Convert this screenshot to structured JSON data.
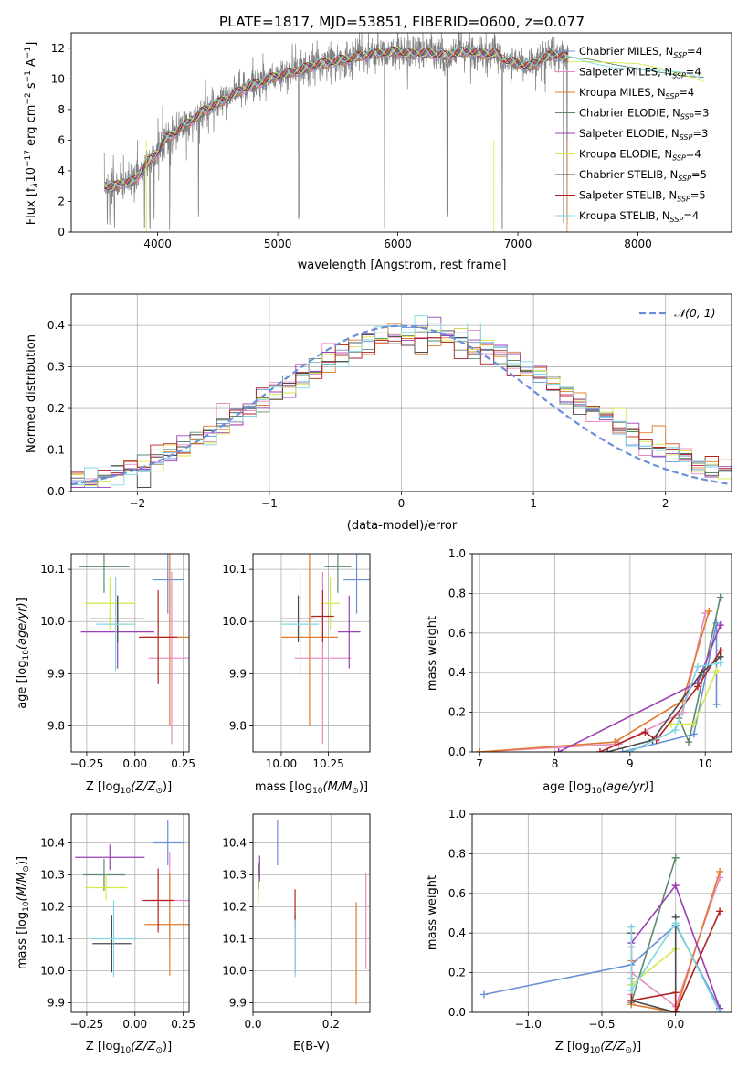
{
  "chart_data": [
    {
      "id": "spectrum",
      "type": "line",
      "title": "PLATE=1817, MJD=53851, FIBERID=0600, z=0.077",
      "xlabel": "wavelength [Angstrom, rest frame]",
      "ylabel": "Flux [f",
      "ylabel_full": "Flux [fλ10⁻¹⁷ erg cm⁻² s⁻¹ A⁻¹]",
      "xlim": [
        3280,
        8780
      ],
      "ylim": [
        0,
        13
      ],
      "xticks": [
        4000,
        5000,
        6000,
        7000,
        8000
      ],
      "yticks": [
        0,
        2,
        4,
        6,
        8,
        10,
        12
      ],
      "grid": false,
      "legend_position": "right",
      "legend": [
        {
          "label": "Chabrier MILES, N",
          "sub": "SSP",
          "suffix": "=4",
          "color": "#6a8fd8"
        },
        {
          "label": "Salpeter MILES, N",
          "sub": "SSP",
          "suffix": "=4",
          "color": "#e88ac4"
        },
        {
          "label": "Kroupa MILES, N",
          "sub": "SSP",
          "suffix": "=4",
          "color": "#e07b2e"
        },
        {
          "label": "Chabrier ELODIE, N",
          "sub": "SSP",
          "suffix": "=3",
          "color": "#5d8a6a"
        },
        {
          "label": "Salpeter ELODIE, N",
          "sub": "SSP",
          "suffix": "=3",
          "color": "#9b3fb5"
        },
        {
          "label": "Kroupa ELODIE, N",
          "sub": "SSP",
          "suffix": "=4",
          "color": "#d6e84a"
        },
        {
          "label": "Chabrier STELIB, N",
          "sub": "SSP",
          "suffix": "=5",
          "color": "#4a4a4a"
        },
        {
          "label": "Salpeter STELIB, N",
          "sub": "SSP",
          "suffix": "=5",
          "color": "#b22222"
        },
        {
          "label": "Kroupa STELIB, N",
          "sub": "SSP",
          "suffix": "=4",
          "color": "#7fd6e0"
        }
      ],
      "continuum": [
        [
          3560,
          3.0
        ],
        [
          3620,
          2.9
        ],
        [
          3700,
          3.2
        ],
        [
          3800,
          3.3
        ],
        [
          3850,
          3.8
        ],
        [
          3900,
          4.4
        ],
        [
          3950,
          4.8
        ],
        [
          4000,
          5.2
        ],
        [
          4050,
          6.0
        ],
        [
          4100,
          6.2
        ],
        [
          4200,
          6.8
        ],
        [
          4300,
          7.4
        ],
        [
          4400,
          8.0
        ],
        [
          4500,
          8.4
        ],
        [
          4600,
          8.8
        ],
        [
          4700,
          9.3
        ],
        [
          4800,
          9.6
        ],
        [
          4900,
          9.9
        ],
        [
          5000,
          10.2
        ],
        [
          5100,
          10.4
        ],
        [
          5200,
          10.6
        ],
        [
          5300,
          10.9
        ],
        [
          5400,
          11.0
        ],
        [
          5500,
          11.2
        ],
        [
          5600,
          11.3
        ],
        [
          5700,
          11.5
        ],
        [
          5800,
          11.6
        ],
        [
          5900,
          11.7
        ],
        [
          6000,
          11.8
        ],
        [
          6100,
          11.6
        ],
        [
          6200,
          11.7
        ],
        [
          6300,
          11.6
        ],
        [
          6400,
          11.5
        ],
        [
          6500,
          11.7
        ],
        [
          6600,
          11.8
        ],
        [
          6700,
          11.6
        ],
        [
          6800,
          11.7
        ],
        [
          6900,
          11.2
        ],
        [
          7000,
          11.0
        ],
        [
          7100,
          10.8
        ],
        [
          7200,
          11.3
        ],
        [
          7300,
          11.6
        ],
        [
          7400,
          11.4
        ]
      ],
      "extension": [
        [
          7420,
          11.3
        ],
        [
          7600,
          11.1
        ],
        [
          7800,
          10.9
        ],
        [
          8000,
          10.8
        ],
        [
          8200,
          10.6
        ],
        [
          8400,
          10.3
        ],
        [
          8550,
          9.9
        ]
      ]
    },
    {
      "id": "residuals",
      "type": "histogram",
      "xlabel": "(data-model)/error",
      "ylabel": "Normed distribution",
      "xlim": [
        -2.5,
        2.5
      ],
      "ylim": [
        0,
        0.475
      ],
      "xticks": [
        -2,
        -1,
        0,
        1,
        2
      ],
      "yticks": [
        0.0,
        0.1,
        0.2,
        0.3,
        0.4
      ],
      "grid": true,
      "legend_position": "top-right",
      "legend": [
        {
          "label": "𝒩(0, 1)",
          "color": "#6a8fd8",
          "style": "dashed"
        }
      ],
      "bin_width": 0.1
    },
    {
      "id": "age_vs_Z",
      "type": "errorbar",
      "xlabel": "Z [log",
      "xlabel_full": "Z [log₁₀(Z/Z⊙)]",
      "ylabel": "age  [log",
      "ylabel_full": "age  [log₁₀(age/yr)]",
      "xlim": [
        -0.33,
        0.28
      ],
      "ylim": [
        9.75,
        10.13
      ],
      "xticks": [
        -0.25,
        0.0,
        0.25
      ],
      "xtick_labels": [
        "−0.25",
        "0.00",
        "0.25"
      ],
      "yticks": [
        9.8,
        9.9,
        10.0,
        10.1
      ],
      "grid": true,
      "points": [
        {
          "x": 0.17,
          "xerr": 0.08,
          "y": 10.08,
          "yerr": 0.065,
          "color": "#6a8fd8"
        },
        {
          "x": 0.19,
          "xerr": 0.12,
          "y": 9.93,
          "yerr": 0.165,
          "color": "#e88ac4"
        },
        {
          "x": 0.18,
          "xerr": 0.13,
          "y": 9.97,
          "yerr": 0.17,
          "color": "#e07b2e"
        },
        {
          "x": -0.16,
          "xerr": 0.13,
          "y": 10.105,
          "yerr": 0.05,
          "color": "#5d8a6a"
        },
        {
          "x": -0.09,
          "xerr": 0.19,
          "y": 9.98,
          "yerr": 0.07,
          "color": "#9b3fb5"
        },
        {
          "x": -0.13,
          "xerr": 0.13,
          "y": 10.035,
          "yerr": 0.05,
          "color": "#d6e84a"
        },
        {
          "x": -0.09,
          "xerr": 0.14,
          "y": 10.005,
          "yerr": 0.045,
          "color": "#4a4a4a"
        },
        {
          "x": 0.12,
          "xerr": 0.1,
          "y": 9.97,
          "yerr": 0.09,
          "color": "#b22222"
        },
        {
          "x": -0.1,
          "xerr": 0.1,
          "y": 9.995,
          "yerr": 0.09,
          "color": "#7fd6e0"
        }
      ]
    },
    {
      "id": "age_vs_mass",
      "type": "errorbar",
      "xlabel": "mass [log",
      "xlabel_full": "mass [log₁₀(M/M⊙)]",
      "xlim": [
        9.85,
        10.47
      ],
      "ylim": [
        9.75,
        10.13
      ],
      "xticks": [
        10.0,
        10.25
      ],
      "xtick_labels": [
        "10.00",
        "10.25"
      ],
      "yticks": [
        9.8,
        9.9,
        10.0,
        10.1
      ],
      "grid": true,
      "points": [
        {
          "x": 10.4,
          "xerr": 0.07,
          "y": 10.08,
          "yerr": 0.065,
          "color": "#6a8fd8"
        },
        {
          "x": 10.22,
          "xerr": 0.15,
          "y": 9.93,
          "yerr": 0.165,
          "color": "#e88ac4"
        },
        {
          "x": 10.15,
          "xerr": 0.15,
          "y": 9.97,
          "yerr": 0.17,
          "color": "#e07b2e"
        },
        {
          "x": 10.3,
          "xerr": 0.07,
          "y": 10.105,
          "yerr": 0.05,
          "color": "#5d8a6a"
        },
        {
          "x": 10.36,
          "xerr": 0.06,
          "y": 9.98,
          "yerr": 0.07,
          "color": "#9b3fb5"
        },
        {
          "x": 10.26,
          "xerr": 0.05,
          "y": 10.035,
          "yerr": 0.05,
          "color": "#d6e84a"
        },
        {
          "x": 10.09,
          "xerr": 0.09,
          "y": 10.005,
          "yerr": 0.045,
          "color": "#4a4a4a"
        },
        {
          "x": 10.22,
          "xerr": 0.06,
          "y": 10.01,
          "yerr": 0.05,
          "color": "#b22222"
        },
        {
          "x": 10.1,
          "xerr": 0.1,
          "y": 9.995,
          "yerr": 0.1,
          "color": "#7fd6e0"
        }
      ]
    },
    {
      "id": "mw_vs_age",
      "type": "line",
      "xlabel": "age  [log",
      "xlabel_full": "age  [log₁₀(age/yr)]",
      "ylabel": "mass weight",
      "xlim": [
        6.9,
        10.35
      ],
      "ylim": [
        0,
        1.0
      ],
      "xticks": [
        7,
        8,
        9,
        10
      ],
      "yticks": [
        0.0,
        0.2,
        0.4,
        0.6,
        0.8,
        1.0
      ],
      "grid": true,
      "series": [
        {
          "color": "#6a8fd8",
          "points": [
            [
              8.9,
              0.0
            ],
            [
              9.85,
              0.09
            ],
            [
              10.15,
              0.65
            ],
            [
              10.15,
              0.24
            ]
          ]
        },
        {
          "color": "#e88ac4",
          "points": [
            [
              7.0,
              0.0
            ],
            [
              8.85,
              0.04
            ],
            [
              9.7,
              0.2
            ],
            [
              10.0,
              0.7
            ]
          ]
        },
        {
          "color": "#e07b2e",
          "points": [
            [
              7.0,
              0.0
            ],
            [
              8.8,
              0.05
            ],
            [
              9.7,
              0.26
            ],
            [
              10.05,
              0.71
            ]
          ]
        },
        {
          "color": "#5d8a6a",
          "points": [
            [
              9.65,
              0.17
            ],
            [
              9.78,
              0.05
            ],
            [
              10.2,
              0.78
            ]
          ]
        },
        {
          "color": "#9b3fb5",
          "points": [
            [
              8.05,
              0.0
            ],
            [
              9.9,
              0.35
            ],
            [
              10.2,
              0.64
            ]
          ]
        },
        {
          "color": "#d6e84a",
          "points": [
            [
              9.55,
              0.14
            ],
            [
              9.85,
              0.14
            ],
            [
              10.15,
              0.41
            ]
          ]
        },
        {
          "color": "#4a4a4a",
          "points": [
            [
              8.7,
              0.0
            ],
            [
              9.3,
              0.06
            ],
            [
              9.95,
              0.4
            ],
            [
              10.2,
              0.48
            ]
          ]
        },
        {
          "color": "#b22222",
          "points": [
            [
              8.6,
              0.0
            ],
            [
              9.2,
              0.1
            ],
            [
              9.35,
              0.06
            ],
            [
              9.9,
              0.33
            ],
            [
              10.2,
              0.51
            ]
          ]
        },
        {
          "color": "#7fd6e0",
          "points": [
            [
              9.0,
              0.0
            ],
            [
              9.6,
              0.11
            ],
            [
              9.9,
              0.43
            ],
            [
              10.2,
              0.45
            ]
          ]
        }
      ]
    },
    {
      "id": "mass_vs_Z",
      "type": "errorbar",
      "xlabel": "Z [log",
      "xlabel_full": "Z [log₁₀(Z/Z⊙)]",
      "ylabel": "mass [log",
      "ylabel_full": "mass [log₁₀(M/M⊙)]",
      "xlim": [
        -0.33,
        0.28
      ],
      "ylim": [
        9.87,
        10.49
      ],
      "xticks": [
        -0.25,
        0.0,
        0.25
      ],
      "xtick_labels": [
        "−0.25",
        "0.00",
        "0.25"
      ],
      "yticks": [
        9.9,
        10.0,
        10.1,
        10.2,
        10.3,
        10.4
      ],
      "ytick_labels": [
        "9.9",
        "10.0",
        "10.1",
        "10.2",
        "10.3",
        "10.4"
      ],
      "grid": true,
      "points": [
        {
          "x": 0.17,
          "xerr": 0.08,
          "y": 10.4,
          "yerr": 0.07,
          "color": "#6a8fd8"
        },
        {
          "x": 0.18,
          "xerr": 0.1,
          "y": 10.22,
          "yerr": 0.15,
          "color": "#e88ac4"
        },
        {
          "x": 0.18,
          "xerr": 0.13,
          "y": 10.145,
          "yerr": 0.16,
          "color": "#e07b2e"
        },
        {
          "x": -0.16,
          "xerr": 0.11,
          "y": 10.3,
          "yerr": 0.05,
          "color": "#5d8a6a"
        },
        {
          "x": -0.13,
          "xerr": 0.18,
          "y": 10.355,
          "yerr": 0.04,
          "color": "#9b3fb5"
        },
        {
          "x": -0.15,
          "xerr": 0.11,
          "y": 10.26,
          "yerr": 0.04,
          "color": "#d6e84a"
        },
        {
          "x": -0.12,
          "xerr": 0.1,
          "y": 10.085,
          "yerr": 0.09,
          "color": "#4a4a4a"
        },
        {
          "x": 0.12,
          "xerr": 0.08,
          "y": 10.22,
          "yerr": 0.1,
          "color": "#b22222"
        },
        {
          "x": -0.11,
          "xerr": 0.12,
          "y": 10.1,
          "yerr": 0.12,
          "color": "#7fd6e0"
        }
      ]
    },
    {
      "id": "mass_vs_ebv",
      "type": "errorbar",
      "xlabel": "E(B-V)",
      "xlim": [
        0.0,
        0.3
      ],
      "ylim": [
        9.87,
        10.49
      ],
      "xticks": [
        0.0,
        0.2
      ],
      "xtick_labels": [
        "0.0",
        "0.2"
      ],
      "yticks": [
        9.9,
        10.0,
        10.1,
        10.2,
        10.3,
        10.4
      ],
      "ytick_labels": [
        "9.9",
        "10.0",
        "10.1",
        "10.2",
        "10.3",
        "10.4"
      ],
      "grid": true,
      "points": [
        {
          "x": 0.063,
          "xerr": 0.0,
          "y": 10.4,
          "yerr": 0.07,
          "color": "#6a8fd8"
        },
        {
          "x": 0.29,
          "xerr": 0.0,
          "y": 10.155,
          "yerr": 0.15,
          "color": "#e88ac4"
        },
        {
          "x": 0.265,
          "xerr": 0.0,
          "y": 10.055,
          "yerr": 0.16,
          "color": "#e07b2e"
        },
        {
          "x": 0.015,
          "xerr": 0.0,
          "y": 10.295,
          "yerr": 0.04,
          "color": "#5d8a6a"
        },
        {
          "x": 0.017,
          "xerr": 0.0,
          "y": 10.32,
          "yerr": 0.04,
          "color": "#9b3fb5"
        },
        {
          "x": 0.014,
          "xerr": 0.0,
          "y": 10.255,
          "yerr": 0.04,
          "color": "#d6e84a"
        },
        {
          "x": 0.108,
          "xerr": 0.0,
          "y": 10.085,
          "yerr": 0.09,
          "color": "#4a4a4a"
        },
        {
          "x": 0.108,
          "xerr": 0.0,
          "y": 10.195,
          "yerr": 0.06,
          "color": "#b22222"
        },
        {
          "x": 0.108,
          "xerr": 0.0,
          "y": 10.07,
          "yerr": 0.09,
          "color": "#7fd6e0"
        }
      ]
    },
    {
      "id": "mw_vs_Z",
      "type": "line",
      "xlabel": "Z [log",
      "xlabel_full": "Z [log₁₀(Z/Z⊙)]",
      "ylabel": "mass weight",
      "xlim": [
        -1.38,
        0.38
      ],
      "ylim": [
        0,
        1.0
      ],
      "xticks": [
        -1.0,
        -0.5,
        0.0
      ],
      "xtick_labels": [
        "−1.0",
        "−0.5",
        "0.0"
      ],
      "yticks": [
        0.0,
        0.2,
        0.4,
        0.6,
        0.8,
        1.0
      ],
      "grid": true,
      "series": [
        {
          "color": "#6a8fd8",
          "points": [
            [
              -1.3,
              0.09
            ],
            [
              -0.3,
              0.24
            ],
            [
              0.0,
              0.44
            ],
            [
              0.3,
              0.02
            ]
          ]
        },
        {
          "color": "#e88ac4",
          "points": [
            [
              -0.3,
              0.09
            ],
            [
              -0.3,
              0.2
            ],
            [
              0.0,
              0.03
            ],
            [
              0.3,
              0.68
            ]
          ]
        },
        {
          "color": "#e07b2e",
          "points": [
            [
              -0.3,
              0.26
            ],
            [
              -0.3,
              0.04
            ],
            [
              0.0,
              0.0
            ],
            [
              0.3,
              0.71
            ]
          ]
        },
        {
          "color": "#5d8a6a",
          "points": [
            [
              -0.3,
              0.17
            ],
            [
              -0.3,
              0.05
            ],
            [
              0.0,
              0.78
            ]
          ]
        },
        {
          "color": "#9b3fb5",
          "points": [
            [
              -0.3,
              0.35
            ],
            [
              0.0,
              0.64
            ],
            [
              0.3,
              0.02
            ]
          ]
        },
        {
          "color": "#d6e84a",
          "points": [
            [
              -0.3,
              0.14
            ],
            [
              -0.3,
              0.14
            ],
            [
              0.0,
              0.32
            ]
          ]
        },
        {
          "color": "#4a4a4a",
          "points": [
            [
              -0.3,
              0.4
            ],
            [
              -0.3,
              0.06
            ],
            [
              0.0,
              0.0
            ],
            [
              0.0,
              0.48
            ]
          ]
        },
        {
          "color": "#b22222",
          "points": [
            [
              -0.3,
              0.33
            ],
            [
              -0.3,
              0.06
            ],
            [
              0.0,
              0.1
            ],
            [
              0.0,
              0.0
            ],
            [
              0.3,
              0.51
            ]
          ]
        },
        {
          "color": "#7fd6e0",
          "points": [
            [
              -0.3,
              0.43
            ],
            [
              -0.3,
              0.11
            ],
            [
              0.0,
              0.45
            ],
            [
              0.3,
              0.0
            ]
          ]
        }
      ]
    }
  ]
}
